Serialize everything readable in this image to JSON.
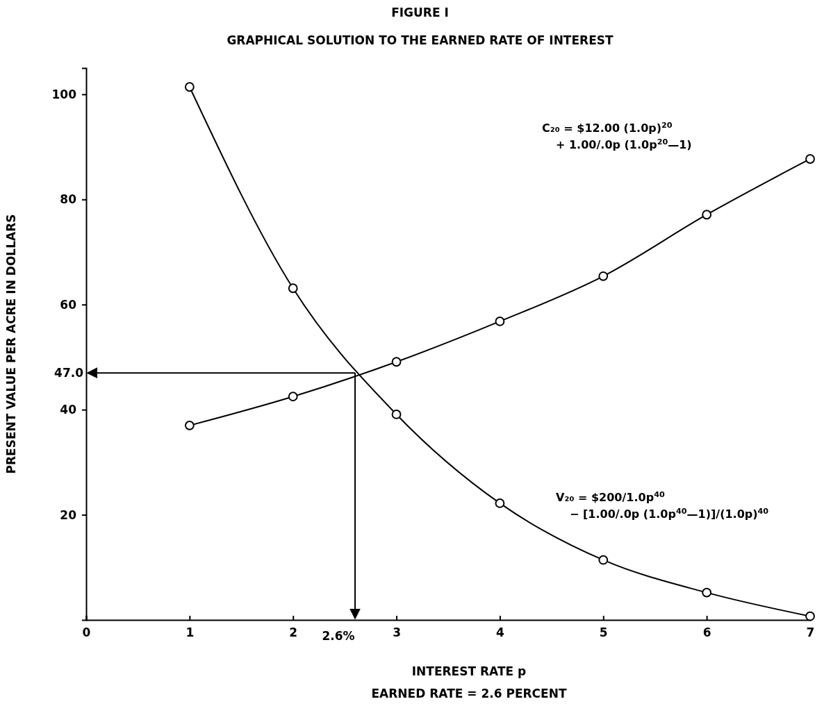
{
  "chart_data": {
    "type": "line",
    "title": "FIGURE I",
    "subtitle": "GRAPHICAL SOLUTION TO THE EARNED RATE OF INTEREST",
    "xlabel": "INTEREST RATE p",
    "ylabel": "PRESENT VALUE PER ACRE IN DOLLARS",
    "x": [
      1,
      2,
      3,
      4,
      5,
      6,
      7
    ],
    "series": [
      {
        "color": "#000000",
        "values": [
          101.4,
          63.1,
          39.1,
          22.2,
          11.4,
          5.2,
          0.7
        ]
      },
      {
        "color": "#000000",
        "values": [
          37.0,
          42.5,
          49.1,
          56.8,
          65.4,
          77.1,
          87.7
        ]
      }
    ],
    "xlim": [
      0,
      7
    ],
    "xticks": [
      0,
      1,
      2,
      3,
      4,
      5,
      6,
      7
    ],
    "ylim": [
      0,
      105
    ],
    "yticks": [
      20,
      40,
      60,
      80,
      100
    ],
    "ref_lines": [
      {
        "axis": "y",
        "value": 47.0,
        "label": "47.0"
      },
      {
        "axis": "x",
        "value": 2.6,
        "label": "2.6%"
      }
    ],
    "annotations": [
      "C₂₀ = $12.00 (1.0p)$^{20}$\n+ 1.00/.0p (1.0p$^{20}$—1)",
      "V₂₀ = $200/1.0p$^{40}$\n− [1.00/.0p (1.0p$^{40}$—1)]/(1.0p)$^{40}$",
      "EARNED RATE = 2.6 PERCENT"
    ],
    "marker": "circle",
    "line_style": "solid",
    "grid": false
  }
}
